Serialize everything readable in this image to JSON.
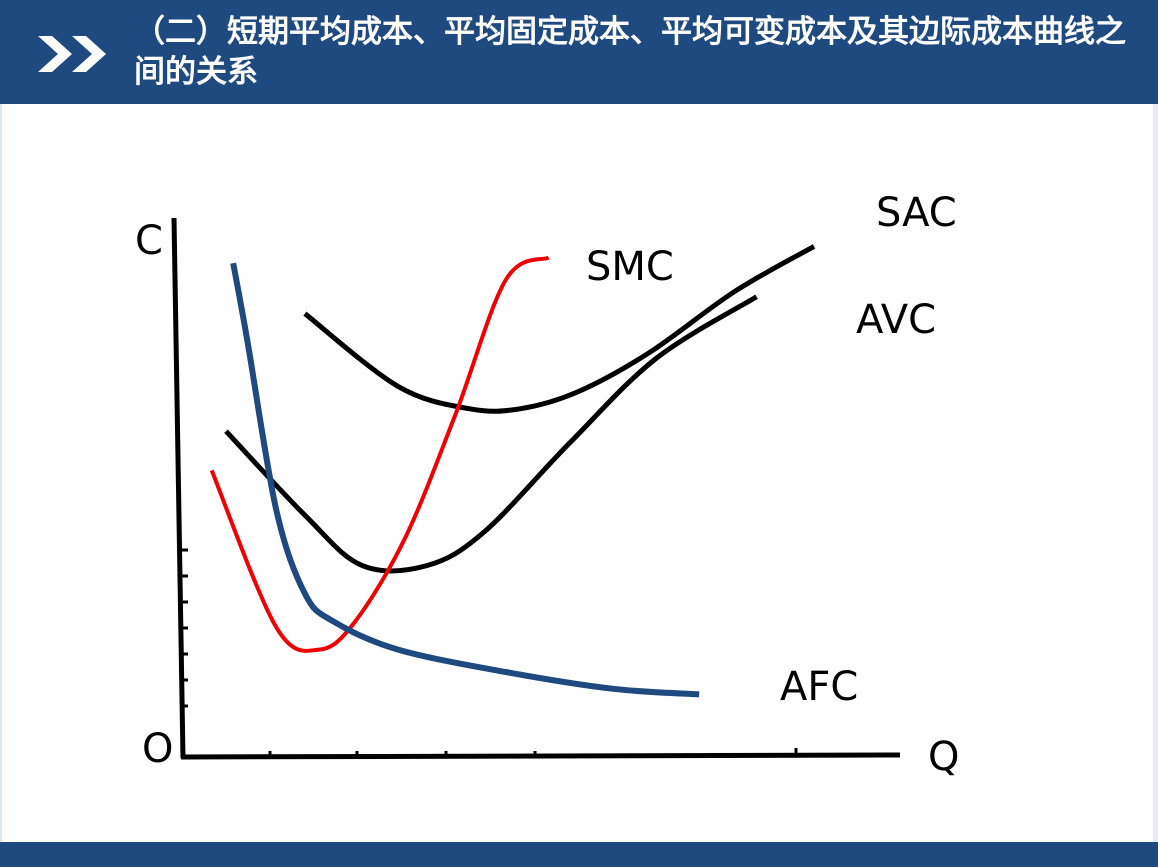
{
  "slide": {
    "title": "（二）短期平均成本、平均固定成本、平均可变成本及其边际成本曲线之间的关系"
  },
  "icons": {
    "header": "double-chevron-right-icon"
  },
  "colors": {
    "header_bg": "#1f4a80",
    "sac": "#000000",
    "avc": "#000000",
    "smc": "#ee0000",
    "afc": "#1f4a80"
  },
  "chart_data": {
    "type": "line",
    "title": "",
    "xlabel": "Q",
    "ylabel": "C",
    "origin_label": "O",
    "xlim": [
      0,
      100
    ],
    "ylim": [
      0,
      100
    ],
    "grid": false,
    "series": [
      {
        "name": "SAC",
        "x": [
          17,
          30,
          40,
          47,
          55,
          65,
          77,
          88
        ],
        "y": [
          79,
          66,
          62,
          62,
          65,
          72,
          83,
          91
        ]
      },
      {
        "name": "AVC",
        "x": [
          6,
          17,
          25,
          34,
          42,
          54,
          66,
          80
        ],
        "y": [
          58,
          43,
          34,
          34,
          40,
          56,
          71,
          82
        ]
      },
      {
        "name": "SMC",
        "x": [
          4,
          13,
          19,
          24,
          31,
          38,
          45,
          51
        ],
        "y": [
          51,
          23,
          19,
          24,
          39,
          61,
          85,
          89
        ]
      },
      {
        "name": "AFC",
        "x": [
          7,
          9,
          13,
          17,
          21,
          30,
          45,
          60,
          72
        ],
        "y": [
          88,
          74,
          44,
          29,
          24,
          19,
          15,
          12,
          11
        ]
      }
    ]
  }
}
